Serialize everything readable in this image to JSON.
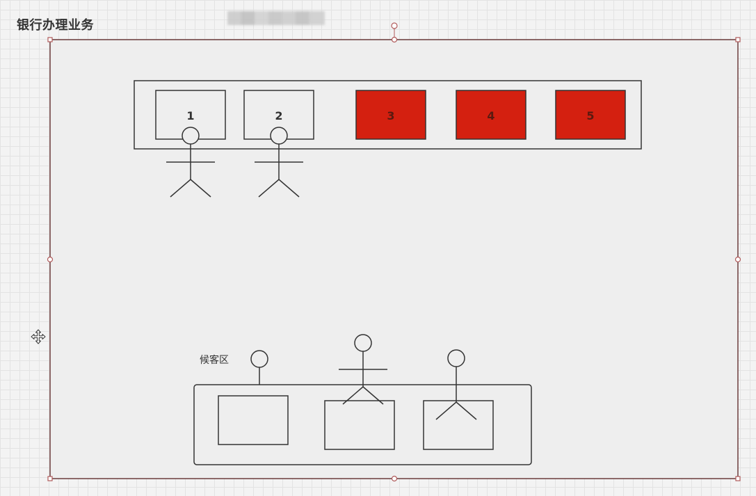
{
  "page": {
    "title": "银行办理业务"
  },
  "counters": [
    {
      "label": "1",
      "state": "open",
      "fill": "#eeeeee"
    },
    {
      "label": "2",
      "state": "open",
      "fill": "#eeeeee"
    },
    {
      "label": "3",
      "state": "closed",
      "fill": "#d42010"
    },
    {
      "label": "4",
      "state": "closed",
      "fill": "#d42010"
    },
    {
      "label": "5",
      "state": "closed",
      "fill": "#d42010"
    }
  ],
  "waiting_area": {
    "label": "候客区"
  },
  "colors": {
    "stroke": "#333333",
    "selection_border": "#6b3b3b",
    "handle_border": "#b05a5a",
    "canvas_fill": "#eeeeee",
    "closed_window": "#d42010",
    "closed_label": "#5a1a10"
  },
  "icons": {
    "move": "move-arrows-icon",
    "rotate": "rotate-handle-icon"
  }
}
